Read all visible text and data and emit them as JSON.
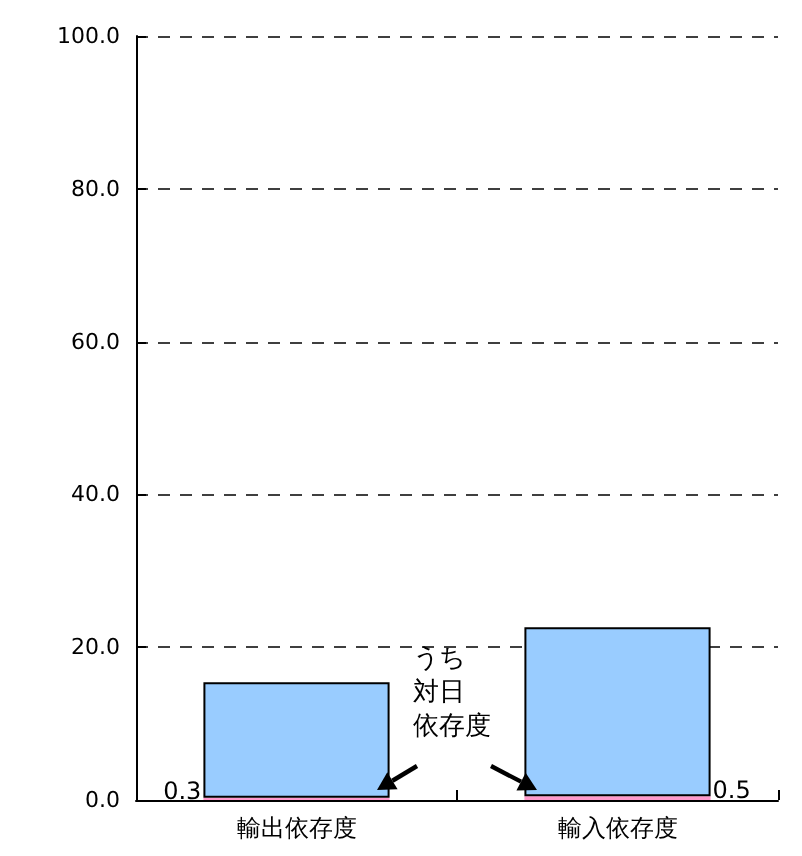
{
  "chart_data": {
    "type": "bar",
    "stacked": true,
    "categories": [
      "輸出依存度",
      "輸入依存度"
    ],
    "series": [
      {
        "color": "#ff99cc",
        "values": [
          0.3,
          0.5
        ],
        "value_labels": [
          "0.3",
          "0.5"
        ]
      },
      {
        "color": "#99ccff",
        "values": [
          15.1,
          22.1
        ]
      }
    ],
    "ylim": [
      0,
      100
    ],
    "yticks": [
      {
        "value": 0,
        "label": "0.0"
      },
      {
        "value": 20,
        "label": "20.0"
      },
      {
        "value": 40,
        "label": "40.0"
      },
      {
        "value": 60,
        "label": "60.0"
      },
      {
        "value": 80,
        "label": "80.0"
      },
      {
        "value": 100,
        "label": "100.0"
      }
    ],
    "grid": "y",
    "annotations": [
      "うち対日依存度"
    ]
  }
}
